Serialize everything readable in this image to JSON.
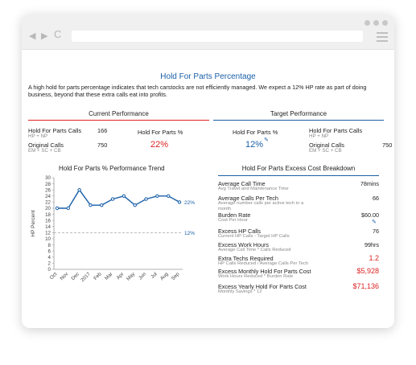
{
  "page": {
    "title": "Hold For Parts Percentage",
    "description": "A high hold for parts percentage indicates that tech carstocks are not efficiently managed. We expect a 12% HP rate as part of doing business, beyond that these extra calls eat into profits."
  },
  "current": {
    "heading": "Current Performance",
    "calls_label": "Hold For Parts Calls",
    "calls_sub": "HP + NP",
    "calls_value": "166",
    "original_label": "Original Calls",
    "original_sub": "EM + SC + CB",
    "original_value": "750",
    "pct_label": "Hold For Parts %",
    "pct_value": "22%"
  },
  "target": {
    "heading": "Target Performance",
    "pct_label": "Hold For Parts %",
    "pct_value": "12%",
    "calls_label": "Hold For Parts Calls",
    "calls_sub": "HP + NP",
    "original_label": "Original Calls",
    "original_sub": "EM + SC + CB",
    "original_value": "750"
  },
  "trend": {
    "heading": "Hold For Parts % Performance Trend"
  },
  "chart_data": {
    "type": "line",
    "title": "Hold For Parts % Performance Trend",
    "ylabel": "HP Percent",
    "xlabel": "",
    "categories": [
      "Oct",
      "Nov",
      "Dec",
      "2017",
      "Feb",
      "Mar",
      "Apr",
      "May",
      "Jun",
      "Jul",
      "Aug",
      "Sep"
    ],
    "series": [
      {
        "values": [
          20,
          20,
          26,
          21,
          21,
          23,
          24,
          21,
          23,
          24,
          24,
          22
        ]
      }
    ],
    "target_line": 12,
    "end_labels": [
      "22%",
      "12%"
    ],
    "ylim": [
      0,
      30
    ],
    "yticks": [
      0,
      2,
      4,
      6,
      8,
      10,
      12,
      14,
      16,
      18,
      20,
      22,
      24,
      26,
      28,
      30
    ],
    "colors": {
      "series": "#1a5fa8",
      "target": "#aaaaaa"
    }
  },
  "breakdown": {
    "heading": "Hold For Parts Excess Cost Breakdown",
    "rows": [
      {
        "label": "Average Call Time",
        "sub": "Avg Travel and Maintenance Time",
        "value": "78mins"
      },
      {
        "label": "Average Calls Per Tech",
        "sub": "Average number calls per active tech in a month",
        "value": "66"
      },
      {
        "label": "Burden Rate",
        "sub": "Cost Per Hour",
        "value": "$60.00"
      },
      {
        "label": "Excess HP Calls",
        "sub": "Current HP Calls - Target HP Calls",
        "value": "76"
      },
      {
        "label": "Excess Work Hours",
        "sub": "Average Call Time * Calls Reduced",
        "value": "99hrs"
      },
      {
        "label": "Extra Techs Required",
        "sub": "HP Calls Reduced / Average Calls Per Tech",
        "value": "1.2"
      },
      {
        "label": "Excess Monthly Hold For Parts Cost",
        "sub": "Work Hours Reduced * Burden Rate",
        "value": "$5,928"
      },
      {
        "label": "Excess Yearly Hold For Parts Cost",
        "sub": "Monthly Savings * 12",
        "value": "$71,136"
      }
    ]
  },
  "colors": {
    "accent_blue": "#1a5fa8",
    "accent_red": "#d22222"
  }
}
